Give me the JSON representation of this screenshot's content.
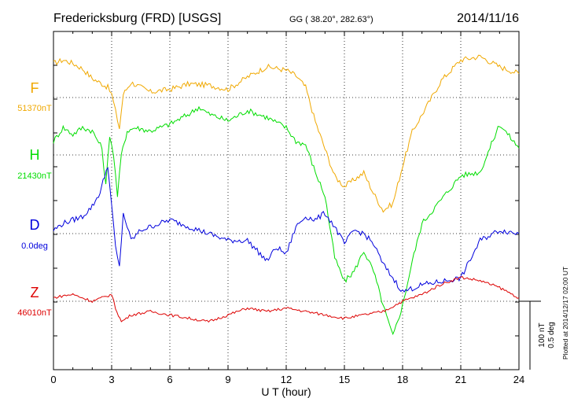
{
  "header": {
    "station": "Fredericksburg (FRD)  [USGS]",
    "coords": "GG ( 38.20°, 282.63°)",
    "date": "2014/11/16"
  },
  "side_note": "Plotted at 2014/12/17 02:00 UT",
  "scale": {
    "line1": "100 nT",
    "line2": "0.5 deg"
  },
  "chart_data": {
    "type": "line",
    "xlabel": "U T (hour)",
    "xlim": [
      0,
      24
    ],
    "xticks": [
      0,
      3,
      6,
      9,
      12,
      15,
      18,
      21,
      24
    ],
    "xticklabels": [
      "0",
      "3",
      "6",
      "9",
      "12",
      "15",
      "18",
      "21",
      "24"
    ],
    "grid": true,
    "series": [
      {
        "name": "F",
        "baseline_label": "51370nT",
        "color": "#f0a800",
        "x": [
          0,
          0.5,
          1,
          1.5,
          2,
          2.5,
          2.8,
          3.0,
          3.2,
          3.4,
          3.6,
          4,
          5,
          6,
          7,
          8,
          9,
          10,
          11,
          12,
          12.5,
          13,
          13.5,
          14,
          14.5,
          15,
          15.5,
          16,
          16.5,
          17,
          17.5,
          18,
          18.5,
          19,
          20,
          21,
          22,
          23,
          24
        ],
        "y": [
          50,
          55,
          50,
          42,
          28,
          20,
          15,
          5,
          -20,
          -45,
          5,
          22,
          8,
          12,
          20,
          18,
          12,
          30,
          45,
          40,
          32,
          15,
          -35,
          -75,
          -115,
          -130,
          -120,
          -110,
          -140,
          -165,
          -155,
          -100,
          -50,
          -25,
          25,
          55,
          60,
          45,
          35
        ]
      },
      {
        "name": "H",
        "baseline_label": "21430nT",
        "color": "#00dd00",
        "x": [
          0,
          0.5,
          1,
          1.5,
          2,
          2.5,
          2.7,
          2.9,
          3.1,
          3.3,
          3.5,
          3.8,
          4.2,
          5,
          6,
          7,
          7.5,
          8,
          9,
          10,
          11,
          12,
          12.5,
          13,
          13.5,
          14,
          14.5,
          15,
          15.5,
          16,
          16.5,
          17,
          17.5,
          18,
          18.5,
          19,
          20,
          21,
          22,
          23,
          24
        ],
        "y": [
          20,
          40,
          30,
          40,
          35,
          10,
          -45,
          30,
          0,
          -60,
          0,
          35,
          40,
          35,
          45,
          60,
          70,
          60,
          50,
          65,
          55,
          40,
          20,
          15,
          -25,
          -60,
          -150,
          -185,
          -170,
          -140,
          -170,
          -220,
          -265,
          -220,
          -155,
          -100,
          -65,
          -30,
          -25,
          45,
          10
        ]
      },
      {
        "name": "D",
        "baseline_label": "0.0deg",
        "color": "#0000dd",
        "x": [
          0,
          0.5,
          1,
          1.5,
          2,
          2.4,
          2.8,
          3.0,
          3.2,
          3.4,
          3.6,
          3.8,
          4,
          4.5,
          5,
          6,
          7,
          8,
          9,
          10,
          11,
          11.5,
          12,
          12.5,
          13,
          13.5,
          14,
          14.5,
          15,
          15.5,
          16,
          16.5,
          17,
          17.5,
          18,
          18.5,
          19,
          20,
          21,
          22,
          23,
          24
        ],
        "y": [
          5,
          15,
          20,
          25,
          40,
          60,
          100,
          40,
          -20,
          -50,
          30,
          10,
          -10,
          5,
          10,
          20,
          10,
          0,
          -10,
          -10,
          -40,
          -20,
          -30,
          10,
          25,
          20,
          30,
          10,
          -15,
          5,
          0,
          -15,
          -45,
          -65,
          -85,
          -80,
          -75,
          -70,
          -65,
          -10,
          5,
          0
        ]
      },
      {
        "name": "Z",
        "baseline_label": "46010nT",
        "color": "#dd0000",
        "x": [
          0,
          0.5,
          1,
          1.5,
          2,
          2.5,
          3.0,
          3.2,
          3.5,
          4,
          5,
          6,
          7,
          8,
          9,
          10,
          11,
          12,
          13,
          14,
          15,
          16,
          17,
          18,
          19,
          20,
          21,
          22,
          23,
          24
        ],
        "y": [
          5,
          8,
          10,
          5,
          0,
          5,
          10,
          -10,
          -30,
          -20,
          -15,
          -20,
          -25,
          -30,
          -20,
          -10,
          -15,
          -10,
          -15,
          -20,
          -25,
          -20,
          -15,
          0,
          10,
          25,
          35,
          30,
          20,
          5
        ]
      }
    ]
  }
}
